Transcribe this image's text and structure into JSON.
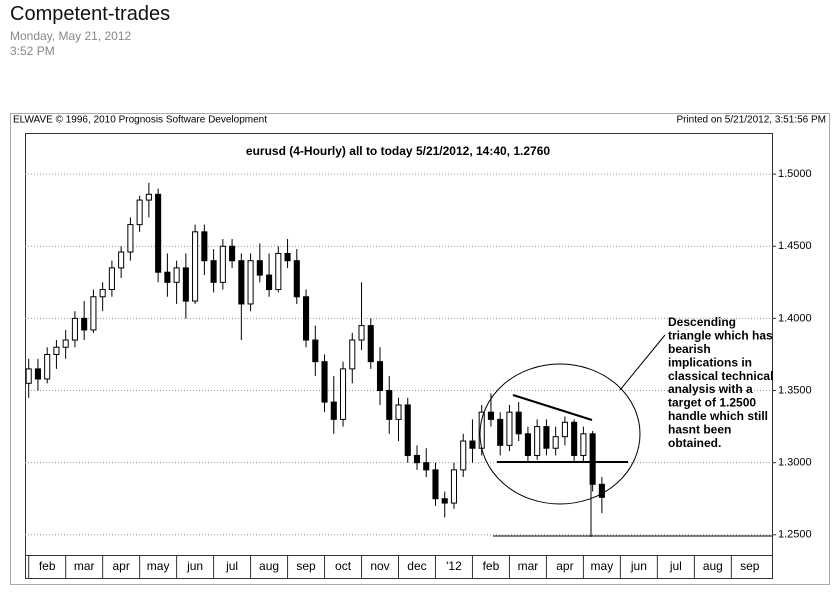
{
  "post": {
    "title": "Competent-trades",
    "date": "Monday, May 21, 2012",
    "time": "3:52 PM"
  },
  "chart_data": {
    "type": "candlestick",
    "source": "ELWAVE © 1996, 2010 Prognosis Software Development",
    "printed": "Printed on 5/21/2012, 3:51:56 PM",
    "title": "eurusd (4-Hourly)  all to today  5/21/2012, 14:40, 1.2760",
    "annotation": [
      "Descending",
      "triangle which has",
      "bearish",
      "implications in",
      "classical technical",
      "analysis with a",
      "target of 1.2500",
      "handle which still",
      "hasnt been",
      "obtained."
    ],
    "xlim": [
      0.9,
      21.1
    ],
    "xticks": [
      {
        "value": 1.5,
        "label": "feb"
      },
      {
        "value": 2.5,
        "label": "mar"
      },
      {
        "value": 3.5,
        "label": "apr"
      },
      {
        "value": 4.5,
        "label": "may"
      },
      {
        "value": 5.5,
        "label": "jun"
      },
      {
        "value": 6.5,
        "label": "jul"
      },
      {
        "value": 7.5,
        "label": "aug"
      },
      {
        "value": 8.5,
        "label": "sep"
      },
      {
        "value": 9.5,
        "label": "oct"
      },
      {
        "value": 10.5,
        "label": "nov"
      },
      {
        "value": 11.5,
        "label": "dec"
      },
      {
        "value": 12.5,
        "label": "'12"
      },
      {
        "value": 13.5,
        "label": "feb"
      },
      {
        "value": 14.5,
        "label": "mar"
      },
      {
        "value": 15.5,
        "label": "apr"
      },
      {
        "value": 16.5,
        "label": "may"
      },
      {
        "value": 17.5,
        "label": "jun"
      },
      {
        "value": 18.5,
        "label": "jul"
      },
      {
        "value": 19.5,
        "label": "aug"
      },
      {
        "value": 20.5,
        "label": "sep"
      }
    ],
    "ylim": [
      1.236,
      1.5285
    ],
    "yticks": [
      {
        "value": 1.25,
        "label": "1.2500"
      },
      {
        "value": 1.3,
        "label": "1.3000"
      },
      {
        "value": 1.35,
        "label": "1.3500"
      },
      {
        "value": 1.4,
        "label": "1.4000"
      },
      {
        "value": 1.45,
        "label": "1.4500"
      },
      {
        "value": 1.5,
        "label": "1.5000"
      }
    ],
    "grid": true,
    "up_color": "#ffffff",
    "down_color": "#000000",
    "x": [
      1.0,
      1.25,
      1.5,
      1.75,
      2.0,
      2.25,
      2.5,
      2.75,
      3.0,
      3.25,
      3.5,
      3.75,
      4.0,
      4.25,
      4.5,
      4.75,
      5.0,
      5.25,
      5.5,
      5.75,
      6.0,
      6.25,
      6.5,
      6.75,
      7.0,
      7.25,
      7.5,
      7.75,
      8.0,
      8.25,
      8.5,
      8.75,
      9.0,
      9.25,
      9.5,
      9.75,
      10.0,
      10.25,
      10.5,
      10.75,
      11.0,
      11.25,
      11.5,
      11.75,
      12.0,
      12.25,
      12.5,
      12.75,
      13.0,
      13.25,
      13.5,
      13.75,
      14.0,
      14.25,
      14.5,
      14.75,
      15.0,
      15.25,
      15.5,
      15.75,
      16.0,
      16.25,
      16.5
    ],
    "open": [
      1.355,
      1.365,
      1.358,
      1.375,
      1.38,
      1.385,
      1.4,
      1.392,
      1.415,
      1.42,
      1.435,
      1.446,
      1.465,
      1.482,
      1.486,
      1.432,
      1.425,
      1.435,
      1.412,
      1.46,
      1.44,
      1.425,
      1.45,
      1.44,
      1.41,
      1.44,
      1.43,
      1.42,
      1.445,
      1.44,
      1.415,
      1.385,
      1.37,
      1.342,
      1.33,
      1.365,
      1.385,
      1.395,
      1.37,
      1.35,
      1.33,
      1.34,
      1.305,
      1.3,
      1.295,
      1.275,
      1.272,
      1.295,
      1.315,
      1.31,
      1.335,
      1.33,
      1.312,
      1.335,
      1.32,
      1.305,
      1.325,
      1.31,
      1.318,
      1.328,
      1.305,
      1.32,
      1.285
    ],
    "high": [
      1.372,
      1.372,
      1.38,
      1.385,
      1.392,
      1.405,
      1.412,
      1.42,
      1.425,
      1.44,
      1.45,
      1.47,
      1.485,
      1.494,
      1.49,
      1.445,
      1.44,
      1.445,
      1.465,
      1.465,
      1.448,
      1.455,
      1.455,
      1.445,
      1.445,
      1.452,
      1.445,
      1.45,
      1.455,
      1.448,
      1.42,
      1.395,
      1.375,
      1.36,
      1.37,
      1.39,
      1.425,
      1.4,
      1.38,
      1.36,
      1.345,
      1.345,
      1.312,
      1.31,
      1.3,
      1.28,
      1.3,
      1.32,
      1.33,
      1.34,
      1.348,
      1.335,
      1.34,
      1.342,
      1.325,
      1.33,
      1.33,
      1.325,
      1.332,
      1.33,
      1.325,
      1.322,
      1.29
    ],
    "low": [
      1.345,
      1.35,
      1.355,
      1.365,
      1.372,
      1.38,
      1.385,
      1.39,
      1.405,
      1.415,
      1.428,
      1.44,
      1.46,
      1.47,
      1.425,
      1.415,
      1.41,
      1.4,
      1.41,
      1.43,
      1.418,
      1.42,
      1.435,
      1.385,
      1.405,
      1.425,
      1.415,
      1.418,
      1.435,
      1.41,
      1.38,
      1.36,
      1.335,
      1.32,
      1.325,
      1.355,
      1.378,
      1.365,
      1.34,
      1.32,
      1.315,
      1.3,
      1.295,
      1.29,
      1.27,
      1.262,
      1.268,
      1.29,
      1.3,
      1.305,
      1.325,
      1.305,
      1.308,
      1.315,
      1.3,
      1.302,
      1.305,
      1.305,
      1.312,
      1.3,
      1.3,
      1.28,
      1.265
    ],
    "close": [
      1.365,
      1.358,
      1.375,
      1.38,
      1.385,
      1.4,
      1.392,
      1.415,
      1.42,
      1.435,
      1.446,
      1.465,
      1.482,
      1.486,
      1.432,
      1.425,
      1.435,
      1.412,
      1.46,
      1.44,
      1.425,
      1.45,
      1.44,
      1.41,
      1.44,
      1.43,
      1.42,
      1.445,
      1.44,
      1.415,
      1.385,
      1.37,
      1.342,
      1.33,
      1.365,
      1.385,
      1.395,
      1.37,
      1.35,
      1.33,
      1.34,
      1.305,
      1.3,
      1.295,
      1.275,
      1.272,
      1.295,
      1.315,
      1.31,
      1.335,
      1.33,
      1.312,
      1.335,
      1.32,
      1.305,
      1.325,
      1.31,
      1.318,
      1.328,
      1.305,
      1.32,
      1.285,
      1.276
    ]
  }
}
